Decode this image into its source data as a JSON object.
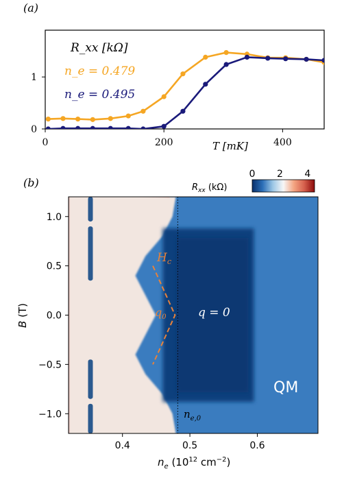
{
  "chart_data": [
    {
      "panel_label": "(a)",
      "type": "line",
      "xlabel": "T [mK]",
      "ylabel": "",
      "xlim": [
        0,
        470
      ],
      "ylim": [
        0,
        1.9
      ],
      "x_ticks": [
        "0",
        "200",
        "400"
      ],
      "y_ticks": [
        "0",
        "1"
      ],
      "x_tick_values": [
        0,
        200,
        400
      ],
      "y_tick_values": [
        0,
        1
      ],
      "legend_title": "R_xx [kΩ]",
      "legend_placement": "top-left",
      "series": [
        {
          "name": "n_e = 0.479",
          "color": "#f5a623",
          "x": [
            5,
            30,
            55,
            80,
            110,
            140,
            165,
            200,
            232,
            270,
            305,
            340,
            375,
            405,
            440,
            470
          ],
          "y": [
            0.19,
            0.2,
            0.19,
            0.18,
            0.2,
            0.25,
            0.34,
            0.62,
            1.06,
            1.38,
            1.47,
            1.44,
            1.37,
            1.37,
            1.34,
            1.28
          ]
        },
        {
          "name": "n_e = 0.495",
          "color": "#1a1a7a",
          "x": [
            5,
            30,
            55,
            80,
            110,
            140,
            165,
            200,
            232,
            270,
            305,
            340,
            375,
            405,
            440,
            470
          ],
          "y": [
            0.0,
            0.01,
            0.01,
            0.01,
            0.01,
            0.01,
            0.0,
            0.05,
            0.34,
            0.86,
            1.24,
            1.38,
            1.36,
            1.35,
            1.34,
            1.32
          ]
        }
      ]
    },
    {
      "panel_label": "(b)",
      "type": "heatmap",
      "xlabel": "n_e (10^12 cm^-2)",
      "ylabel": "B (T)",
      "xlim": [
        0.32,
        0.69
      ],
      "ylim": [
        -1.2,
        1.2
      ],
      "x_ticks": [
        "0.4",
        "0.5",
        "0.6"
      ],
      "x_tick_values": [
        0.4,
        0.5,
        0.6
      ],
      "y_ticks": [
        "1.0",
        "0.5",
        "0.0",
        "-0.5",
        "-1.0"
      ],
      "y_tick_values": [
        1.0,
        0.5,
        0.0,
        -0.5,
        -1.0
      ],
      "colorbar": {
        "label": "R_xx (kΩ)",
        "ticks": [
          "0",
          "2",
          "4"
        ],
        "tick_values": [
          0,
          2,
          4
        ],
        "range": [
          0,
          4.5
        ],
        "colors": [
          "#08306b",
          "#2c6fb8",
          "#9ec8e6",
          "#f7f7f7",
          "#f4a582",
          "#d6604d",
          "#8b0a0a"
        ]
      },
      "boundary_ne_at_B": {
        "B": [
          -1.2,
          -1.0,
          -0.8,
          -0.6,
          -0.4,
          -0.2,
          0.0,
          0.2,
          0.4,
          0.6,
          0.8,
          1.0,
          1.2
        ],
        "n_e": [
          0.47,
          0.465,
          0.45,
          0.425,
          0.41,
          0.425,
          0.44,
          0.425,
          0.41,
          0.425,
          0.45,
          0.465,
          0.47
        ]
      },
      "deep_region": {
        "n_e": [
          0.47,
          0.595
        ],
        "B": [
          -0.88,
          0.88
        ]
      },
      "right_edge_ne": 0.598,
      "dotted_line_ne": 0.482,
      "annotations": {
        "hc_label": "H",
        "hc_sub": "c",
        "q0_label": "q",
        "q0_sub": "0",
        "q_eq_0": "q = 0",
        "qm_label": "QM",
        "ne0_label": "n",
        "ne0_sub": "e,0"
      },
      "annotation_color_dashes": "#e8823a"
    }
  ]
}
